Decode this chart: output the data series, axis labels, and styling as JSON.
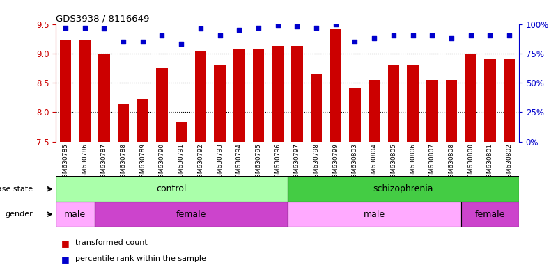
{
  "title": "GDS3938 / 8116649",
  "samples": [
    "GSM630785",
    "GSM630786",
    "GSM630787",
    "GSM630788",
    "GSM630789",
    "GSM630790",
    "GSM630791",
    "GSM630792",
    "GSM630793",
    "GSM630794",
    "GSM630795",
    "GSM630796",
    "GSM630797",
    "GSM630798",
    "GSM630799",
    "GSM630803",
    "GSM630804",
    "GSM630805",
    "GSM630806",
    "GSM630807",
    "GSM630808",
    "GSM630800",
    "GSM630801",
    "GSM630802"
  ],
  "bar_values": [
    9.22,
    9.22,
    9.0,
    8.15,
    8.22,
    8.75,
    7.82,
    9.03,
    8.8,
    9.07,
    9.08,
    9.13,
    9.13,
    8.65,
    9.42,
    8.42,
    8.55,
    8.8,
    8.8,
    8.55,
    8.55,
    9.0,
    8.9,
    8.9
  ],
  "dot_values": [
    97,
    97,
    96,
    85,
    85,
    90,
    83,
    96,
    90,
    95,
    97,
    99,
    98,
    97,
    100,
    85,
    88,
    90,
    90,
    90,
    88,
    90,
    90,
    90
  ],
  "ylim_left": [
    7.5,
    9.5
  ],
  "ylim_right": [
    0,
    100
  ],
  "yticks_left": [
    7.5,
    8.0,
    8.5,
    9.0,
    9.5
  ],
  "yticks_right": [
    0,
    25,
    50,
    75,
    100
  ],
  "bar_color": "#cc0000",
  "dot_color": "#0000cc",
  "disease_state": [
    {
      "label": "control",
      "start": 0,
      "end": 12,
      "color": "#aaffaa"
    },
    {
      "label": "schizophrenia",
      "start": 12,
      "end": 24,
      "color": "#44cc44"
    }
  ],
  "gender": [
    {
      "label": "male",
      "start": 0,
      "end": 2,
      "color": "#ffaaff"
    },
    {
      "label": "female",
      "start": 2,
      "end": 12,
      "color": "#cc44cc"
    },
    {
      "label": "male",
      "start": 12,
      "end": 21,
      "color": "#ffaaff"
    },
    {
      "label": "female",
      "start": 21,
      "end": 24,
      "color": "#cc44cc"
    }
  ],
  "legend_items": [
    {
      "label": "transformed count",
      "color": "#cc0000"
    },
    {
      "label": "percentile rank within the sample",
      "color": "#0000cc"
    }
  ],
  "tick_color_left": "#cc0000",
  "tick_color_right": "#0000cc"
}
